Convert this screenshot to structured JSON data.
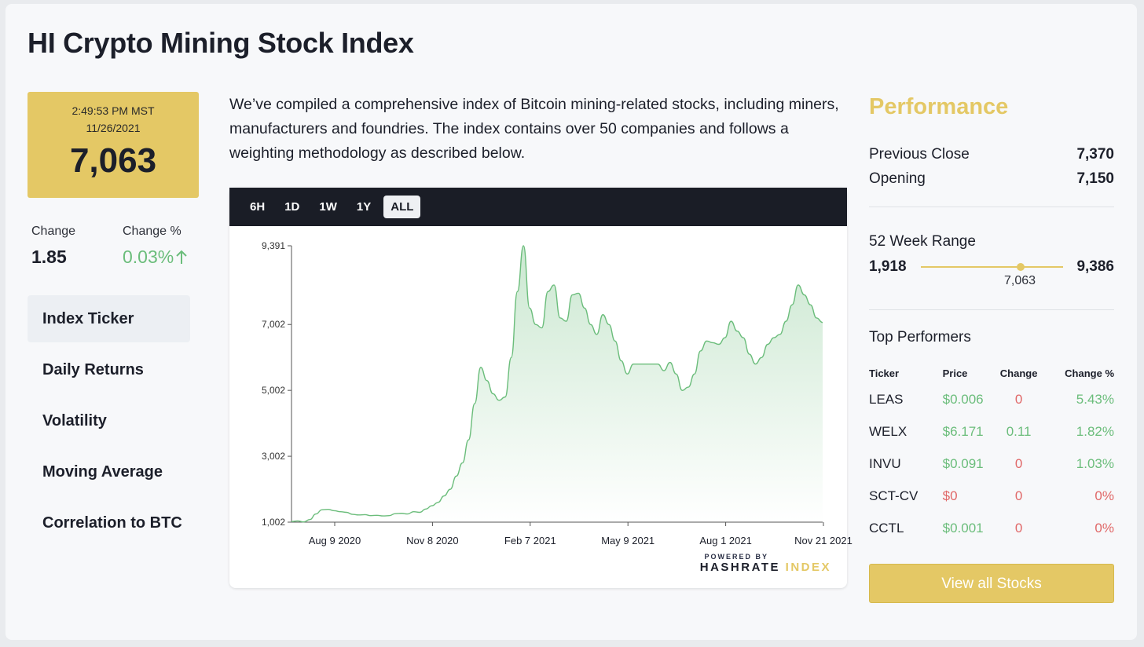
{
  "page_title": "HI Crypto Mining Stock Index",
  "ticker": {
    "time": "2:49:53 PM MST",
    "date": "11/26/2021",
    "value": "7,063"
  },
  "change": {
    "label": "Change",
    "value": "1.85",
    "pct_label": "Change %",
    "pct_value": "0.03%",
    "pct_icon": "arrow-up-icon"
  },
  "nav": [
    {
      "label": "Index Ticker",
      "active": true
    },
    {
      "label": "Daily Returns",
      "active": false
    },
    {
      "label": "Volatility",
      "active": false
    },
    {
      "label": "Moving Average",
      "active": false
    },
    {
      "label": "Correlation to BTC",
      "active": false
    }
  ],
  "intro": "We’ve compiled a comprehensive index of Bitcoin mining-related stocks, including miners, manufacturers and foundries. The index contains over 50 companies and follows a weighting methodology as described below.",
  "chart_tabs": [
    {
      "label": "6H",
      "active": false
    },
    {
      "label": "1D",
      "active": false
    },
    {
      "label": "1W",
      "active": false
    },
    {
      "label": "1Y",
      "active": false
    },
    {
      "label": "ALL",
      "active": true
    }
  ],
  "branding": {
    "powered": "POWERED BY",
    "brand_main": "HASHRATE ",
    "brand_accent": "INDEX"
  },
  "chart_data": {
    "type": "area",
    "title": "",
    "xlabel": "",
    "ylabel": "",
    "y_ticks": [
      1002,
      3002,
      5002,
      7002,
      9391
    ],
    "y_tick_labels": [
      "1,002",
      "3,002",
      "5,002",
      "7,002",
      "9,391"
    ],
    "ylim": [
      1002,
      9391
    ],
    "x_tick_labels": [
      "Aug 9 2020",
      "Nov 8 2020",
      "Feb 7 2021",
      "May 9 2021",
      "Aug 1 2021",
      "Nov 21 2021"
    ],
    "color": "#6bbd7b",
    "series": [
      {
        "values": [
          1020,
          1040,
          1010,
          1080,
          1250,
          1380,
          1390,
          1350,
          1320,
          1300,
          1240,
          1220,
          1230,
          1200,
          1210,
          1190,
          1200,
          1260,
          1270,
          1250,
          1320,
          1300,
          1400,
          1500,
          1600,
          1800,
          2000,
          2400,
          2800,
          3500,
          4600,
          5700,
          5300,
          4900,
          4700,
          4800,
          6000,
          8000,
          9391,
          7500,
          7000,
          6900,
          8000,
          8200,
          7200,
          7100,
          7900,
          7950,
          7500,
          7000,
          6700,
          7300,
          7000,
          6500,
          5900,
          5500,
          5800,
          5800,
          5800,
          5800,
          5800,
          5600,
          5850,
          5500,
          5000,
          5100,
          5500,
          6200,
          6500,
          6450,
          6400,
          6600,
          7100,
          6800,
          6600,
          6100,
          5800,
          6000,
          6400,
          6600,
          6700,
          7100,
          7600,
          8200,
          7900,
          7600,
          7200,
          7063
        ]
      }
    ]
  },
  "performance": {
    "title": "Performance",
    "prev_close_label": "Previous Close",
    "prev_close": "7,370",
    "opening_label": "Opening",
    "opening": "7,150",
    "range_label": "52 Week Range",
    "range_low": "1,918",
    "range_high": "9,386",
    "range_current": "7,063"
  },
  "top_performers": {
    "title": "Top Performers",
    "headers": [
      "Ticker",
      "Price",
      "Change",
      "Change %"
    ],
    "rows": [
      {
        "ticker": "LEAS",
        "price": "$0.006",
        "change": "0",
        "pct": "5.43%",
        "price_up": true,
        "change_up": false,
        "pct_up": true
      },
      {
        "ticker": "WELX",
        "price": "$6.171",
        "change": "0.11",
        "pct": "1.82%",
        "price_up": true,
        "change_up": true,
        "pct_up": true
      },
      {
        "ticker": "INVU",
        "price": "$0.091",
        "change": "0",
        "pct": "1.03%",
        "price_up": true,
        "change_up": false,
        "pct_up": true
      },
      {
        "ticker": "SCT-CV",
        "price": "$0",
        "change": "0",
        "pct": "0%",
        "price_up": false,
        "change_up": false,
        "pct_up": false
      },
      {
        "ticker": "CCTL",
        "price": "$0.001",
        "change": "0",
        "pct": "0%",
        "price_up": true,
        "change_up": false,
        "pct_up": false
      }
    ]
  },
  "view_all": "View all Stocks"
}
